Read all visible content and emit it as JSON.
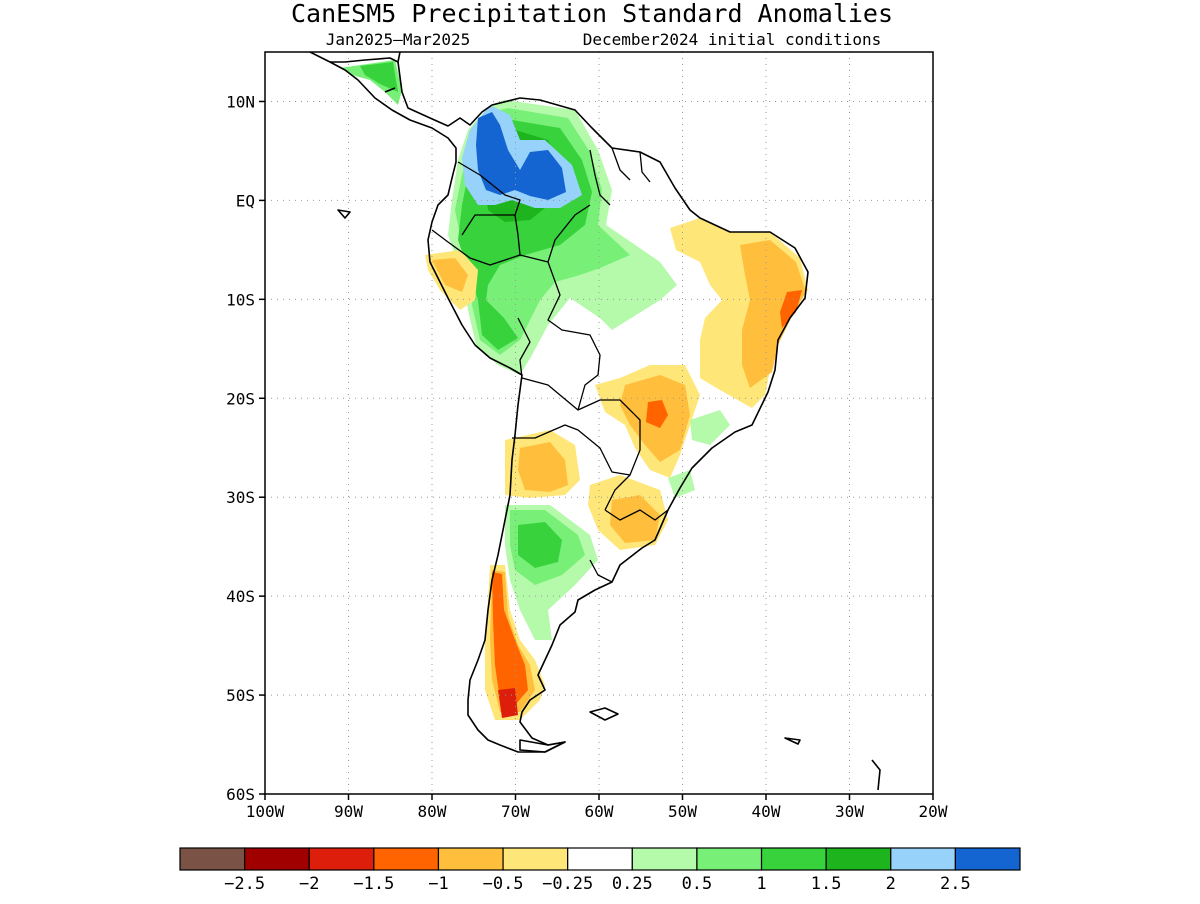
{
  "title": "CanESM5 Precipitation Standard Anomalies",
  "subtitle_left": "Jan2025–Mar2025",
  "subtitle_right": "December2024 initial conditions",
  "map": {
    "lon_range": [
      -100,
      -20
    ],
    "lat_range": [
      -60,
      15
    ],
    "lat_ticks": [
      {
        "value": 10,
        "label": "10N"
      },
      {
        "value": 0,
        "label": "EQ"
      },
      {
        "value": -10,
        "label": "10S"
      },
      {
        "value": -20,
        "label": "20S"
      },
      {
        "value": -30,
        "label": "30S"
      },
      {
        "value": -40,
        "label": "40S"
      },
      {
        "value": -50,
        "label": "50S"
      },
      {
        "value": -60,
        "label": "60S"
      }
    ],
    "lon_ticks": [
      {
        "value": -100,
        "label": "100W"
      },
      {
        "value": -90,
        "label": "90W"
      },
      {
        "value": -80,
        "label": "80W"
      },
      {
        "value": -70,
        "label": "70W"
      },
      {
        "value": -60,
        "label": "60W"
      },
      {
        "value": -50,
        "label": "50W"
      },
      {
        "value": -40,
        "label": "40W"
      },
      {
        "value": -30,
        "label": "30W"
      },
      {
        "value": -20,
        "label": "20W"
      }
    ],
    "grid": true,
    "grid_style": "dotted"
  },
  "colorbar": {
    "colors": [
      "#7a5246",
      "#a00000",
      "#dc1e0a",
      "#ff6400",
      "#ffbe3c",
      "#ffe678",
      "#ffffff",
      "#b4faaa",
      "#78f078",
      "#37d23c",
      "#1eb41e",
      "#96d2fa",
      "#1464d2"
    ],
    "labels": [
      "−2.5",
      "−2",
      "−1.5",
      "−1",
      "−0.5",
      "−0.25",
      "0.25",
      "0.5",
      "1",
      "1.5",
      "2",
      "2.5"
    ]
  }
}
